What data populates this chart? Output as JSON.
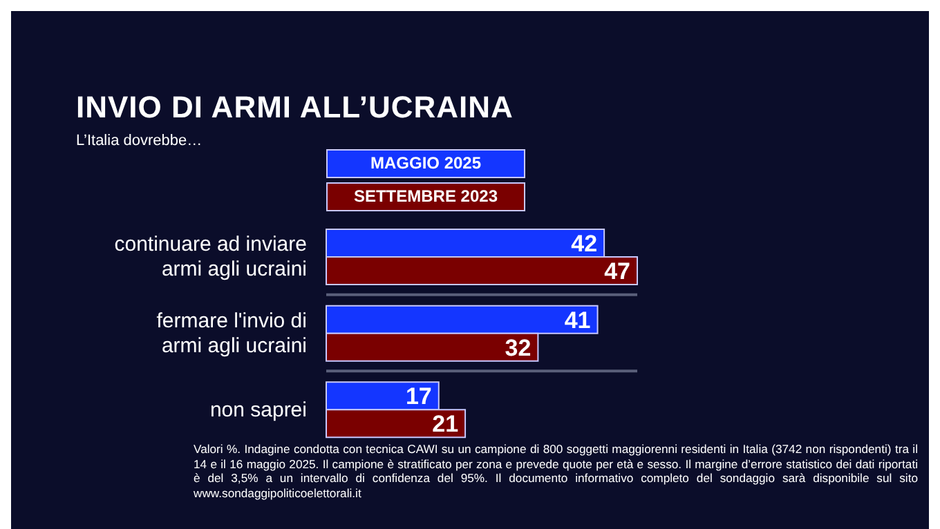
{
  "chart_data": {
    "type": "bar",
    "orientation": "horizontal",
    "title": "INVIO DI ARMI ALL’UCRAINA",
    "subtitle": "L’Italia dovrebbe…",
    "categories": [
      "continuare ad inviare armi agli ucraini",
      "fermare l'invio di armi agli ucraini",
      "non saprei"
    ],
    "series": [
      {
        "name": "MAGGIO 2025",
        "color": "#1436ff",
        "values": [
          42,
          41,
          17
        ]
      },
      {
        "name": "SETTEMBRE 2023",
        "color": "#7a0000",
        "values": [
          47,
          32,
          21
        ]
      }
    ],
    "data_labels": true,
    "legend": "top",
    "grid": "y",
    "annotations": [
      "Valori %. Indagine condotta con tecnica CAWI su un campione di 800 soggetti maggiorenni residenti in Italia (3742 non rispondenti) tra il 14 e il 16 maggio 2025. Il campione è stratificato per zona e prevede quote per età e sesso. Il margine d’errore statistico dei dati riportati è del 3,5% a un intervallo di confidenza del 95%. Il documento informativo completo del sondaggio sarà disponibile sul sito www.sondaggipoliticoelettorali.it"
    ]
  }
}
